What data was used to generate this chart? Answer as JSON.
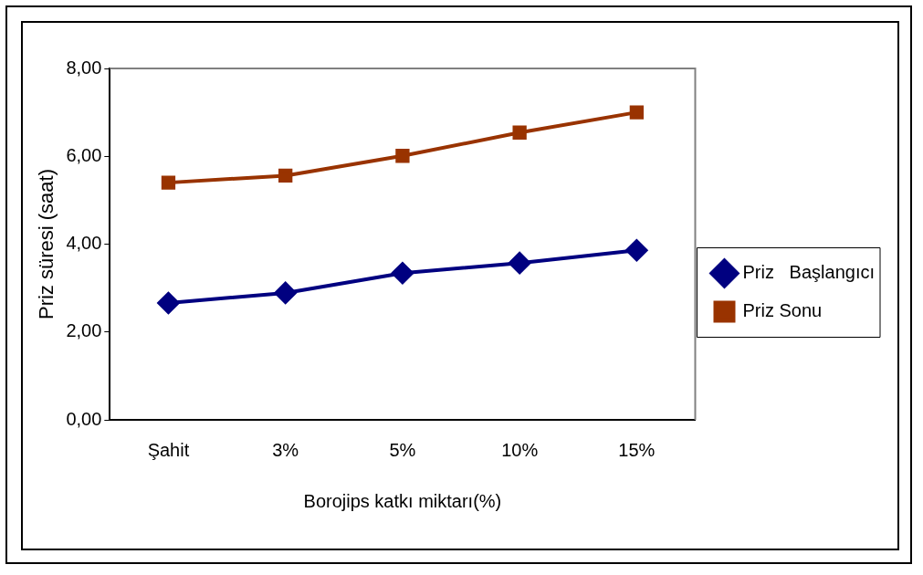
{
  "chart_data": {
    "type": "line",
    "xlabel": "Borojips katkı miktarı(%)",
    "ylabel": "Priz süresi (saat)",
    "categories": [
      "Şahit",
      "3%",
      "5%",
      "10%",
      "15%"
    ],
    "series": [
      {
        "name": "Priz   Başlangıcı",
        "color": "#000080",
        "marker": "diamond",
        "values": [
          2.66,
          2.89,
          3.34,
          3.57,
          3.86
        ]
      },
      {
        "name": "Priz Sonu",
        "color": "#993300",
        "marker": "square",
        "values": [
          5.4,
          5.56,
          6.01,
          6.54,
          7.0
        ]
      }
    ],
    "ylim": [
      0,
      8
    ],
    "yticks": [
      {
        "value": 0,
        "label": "0,00"
      },
      {
        "value": 2,
        "label": "2,00"
      },
      {
        "value": 4,
        "label": "4,00"
      },
      {
        "value": 6,
        "label": "6,00"
      },
      {
        "value": 8,
        "label": "8,00"
      }
    ],
    "grid": false,
    "legend": "right",
    "line_style": "solid"
  }
}
